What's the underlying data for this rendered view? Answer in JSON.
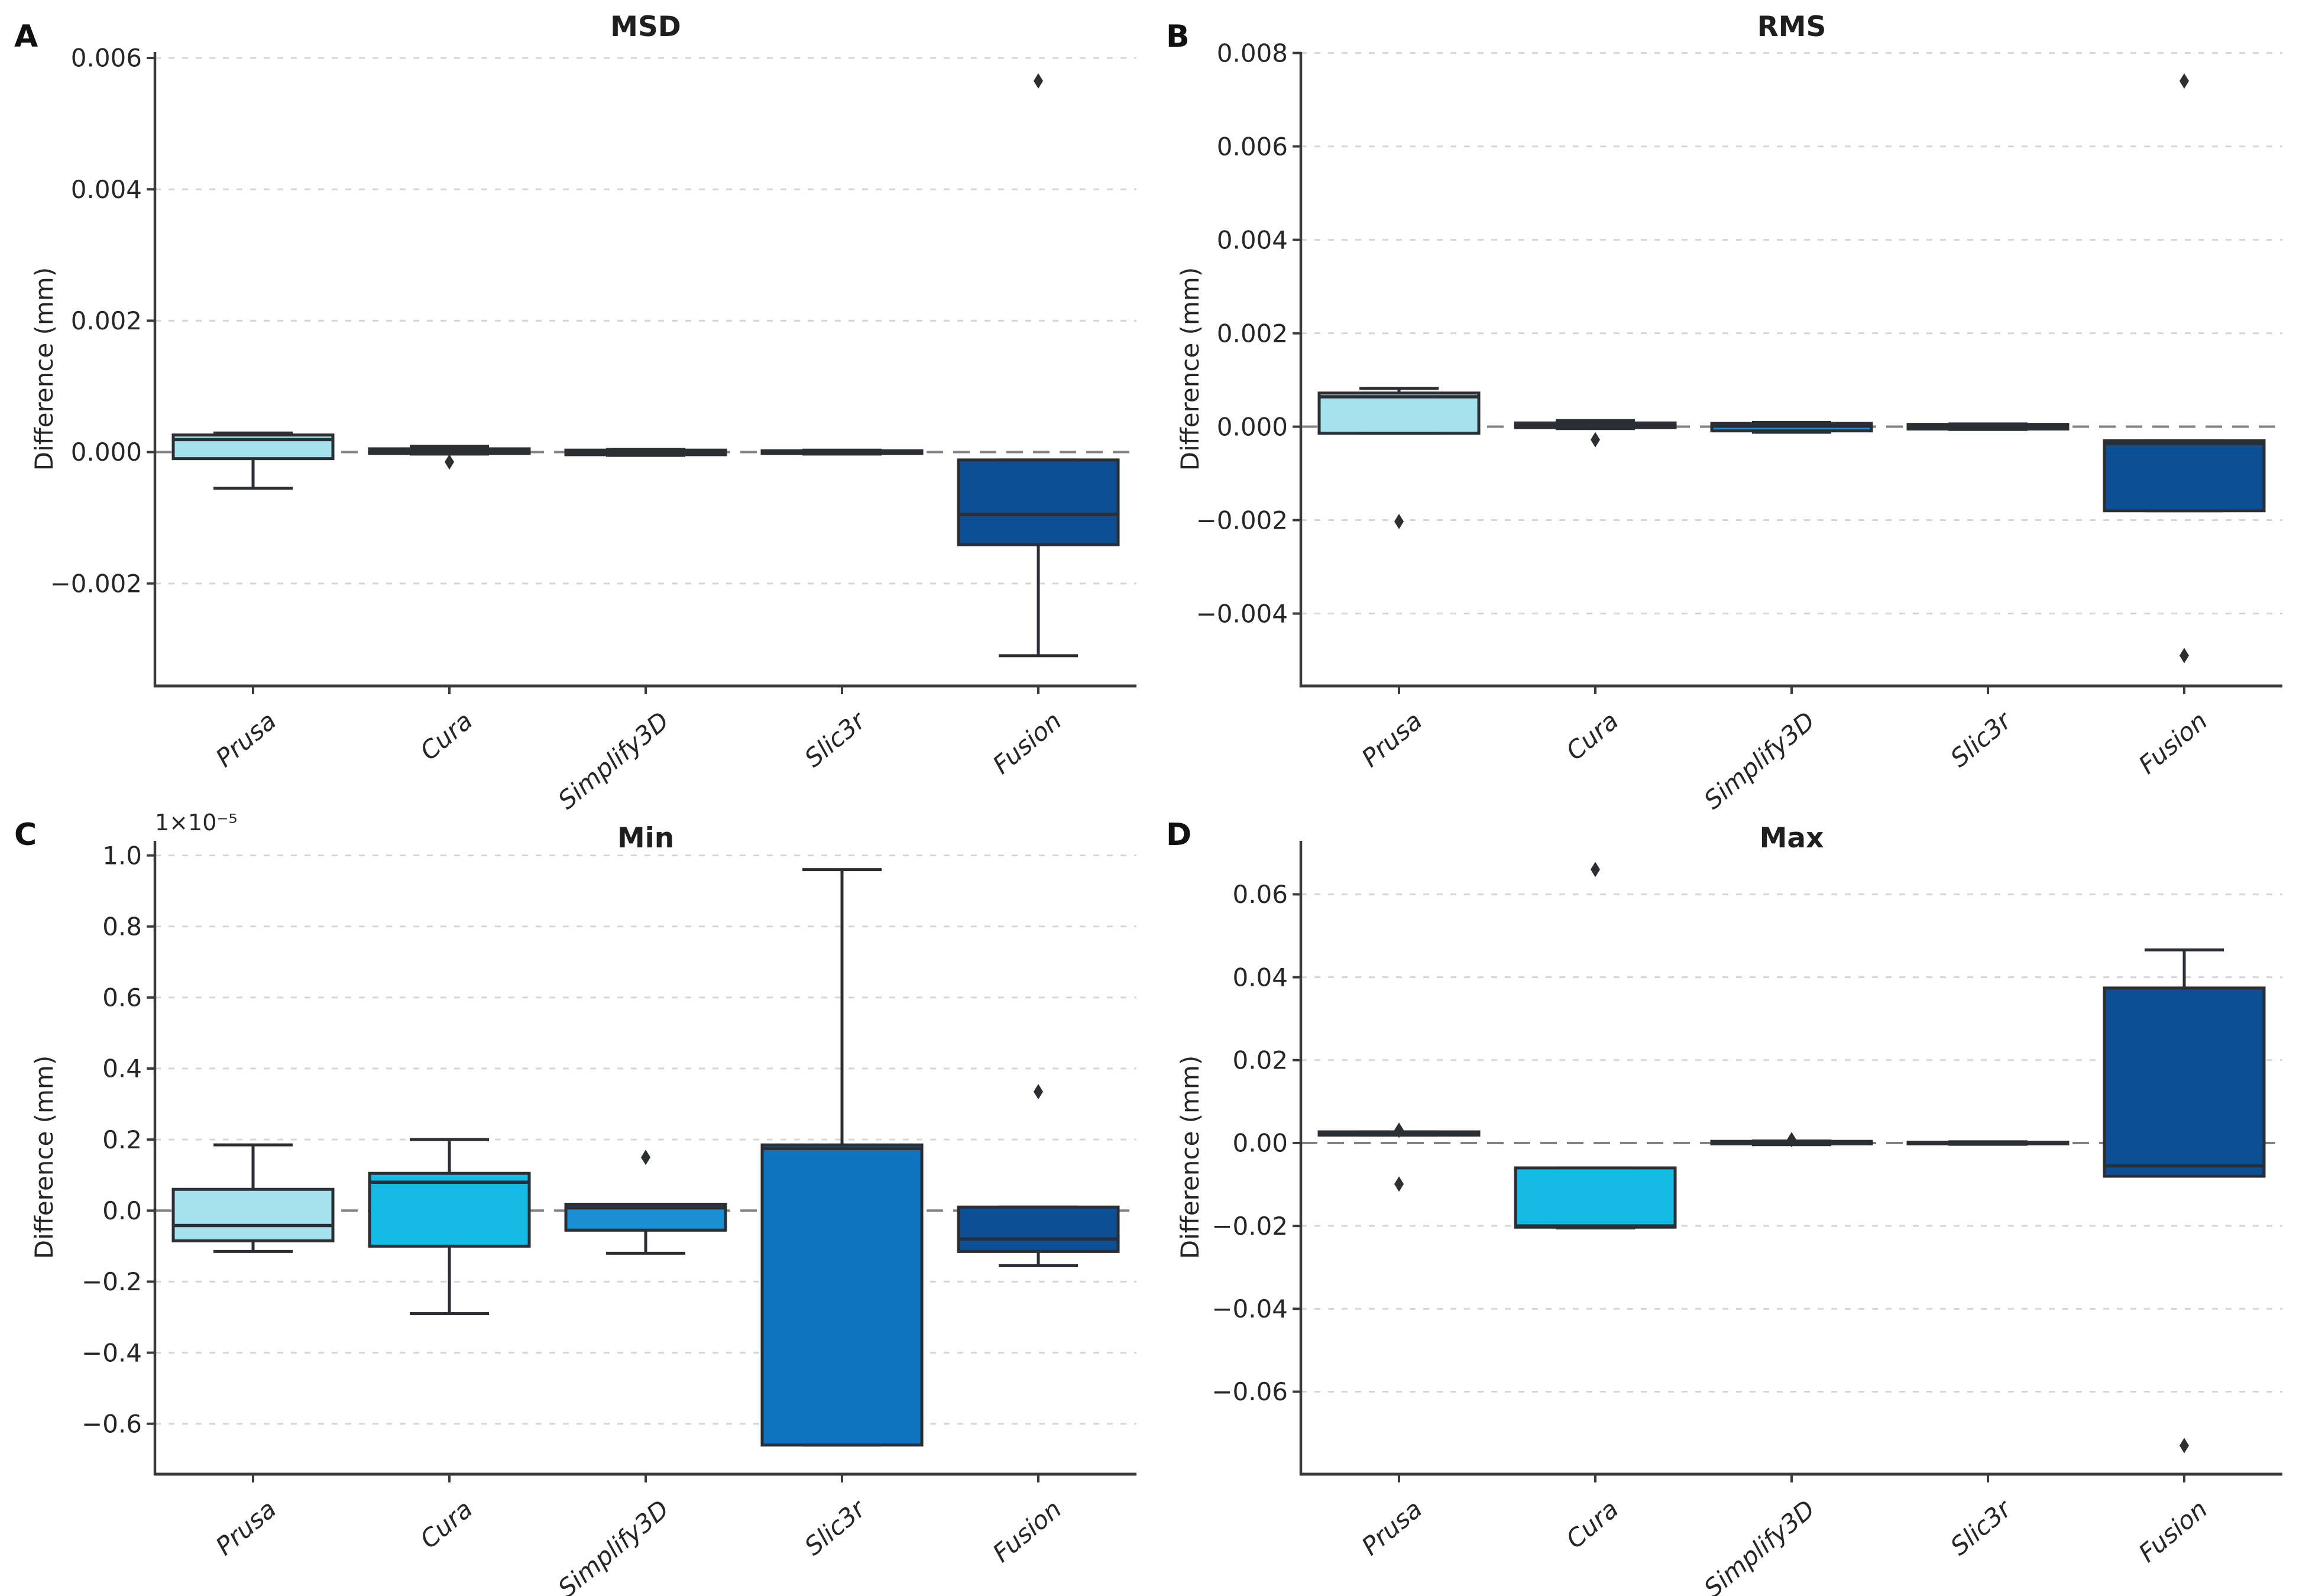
{
  "figure": {
    "background": "#ffffff",
    "text_color": "#262626",
    "axis_color": "#3b3b3b",
    "grid_color": "#d6d6d6",
    "zero_line_color": "#828282",
    "box_edge_color": "#2b2e33",
    "ylabel": "Difference (mm)",
    "categories": [
      "Prusa",
      "Cura",
      "Simplify3D",
      "Slic3r",
      "Fusion"
    ],
    "palette": {
      "Prusa": "#a6e1ee",
      "Cura": "#14b9e4",
      "Simplify3D": "#1b8fd4",
      "Slic3r": "#0e74c2",
      "Fusion": "#0d4f94"
    }
  },
  "chart_data": [
    {
      "type": "box",
      "panel": "A",
      "letter": "A",
      "title": "MSD",
      "ylabel": "Difference (mm)",
      "units": "mm",
      "categories": [
        "Prusa",
        "Cura",
        "Simplify3D",
        "Slic3r",
        "Fusion"
      ],
      "ylim": [
        -0.00356,
        0.00609
      ],
      "yticks": [
        0.006,
        0.004,
        0.002,
        0,
        -0.002
      ],
      "ytick_labels": [
        "0.006",
        "0.004",
        "0.002",
        "0.000",
        "−0.002"
      ],
      "zero_line": 0,
      "grid": "horizontal-dashed",
      "offset_text": "",
      "boxes": [
        {
          "category": "Prusa",
          "whisker_low": -0.00055,
          "q1": -0.0001,
          "median": 0.00019,
          "q3": 0.00026,
          "whisker_high": 0.00029,
          "outliers": []
        },
        {
          "category": "Cura",
          "whisker_low": -3e-05,
          "q1": -2e-05,
          "median": 2e-05,
          "q3": 5e-05,
          "whisker_high": 9e-05,
          "outliers": [
            -0.00015
          ]
        },
        {
          "category": "Simplify3D",
          "whisker_low": -5e-05,
          "q1": -4e-05,
          "median": 0.0,
          "q3": 3e-05,
          "whisker_high": 4e-05,
          "outliers": []
        },
        {
          "category": "Slic3r",
          "whisker_low": -3e-05,
          "q1": -2e-05,
          "median": 0.0,
          "q3": 2e-05,
          "whisker_high": 3e-05,
          "outliers": []
        },
        {
          "category": "Fusion",
          "whisker_low": -0.0031,
          "q1": -0.00141,
          "median": -0.00095,
          "q3": -0.00012,
          "whisker_high": -0.00012,
          "outliers": [
            0.00565
          ]
        }
      ]
    },
    {
      "type": "box",
      "panel": "B",
      "letter": "B",
      "title": "RMS",
      "ylabel": "Difference (mm)",
      "units": "mm",
      "categories": [
        "Prusa",
        "Cura",
        "Simplify3D",
        "Slic3r",
        "Fusion"
      ],
      "ylim": [
        -0.00555,
        0.00802
      ],
      "yticks": [
        0.008,
        0.006,
        0.004,
        0.002,
        0,
        -0.002,
        -0.004
      ],
      "ytick_labels": [
        "0.008",
        "0.006",
        "0.004",
        "0.002",
        "0.000",
        "−0.002",
        "−0.004"
      ],
      "zero_line": 0,
      "grid": "horizontal-dashed",
      "offset_text": "",
      "boxes": [
        {
          "category": "Prusa",
          "whisker_low": -0.00014,
          "q1": -0.00014,
          "median": 0.00064,
          "q3": 0.00072,
          "whisker_high": 0.00082,
          "outliers": [
            -0.00203
          ]
        },
        {
          "category": "Cura",
          "whisker_low": -4e-05,
          "q1": -2e-05,
          "median": 4e-05,
          "q3": 8e-05,
          "whisker_high": 0.00013,
          "outliers": [
            -0.00028
          ]
        },
        {
          "category": "Simplify3D",
          "whisker_low": -0.00012,
          "q1": -9e-05,
          "median": 1e-05,
          "q3": 7e-05,
          "whisker_high": 9e-05,
          "outliers": []
        },
        {
          "category": "Slic3r",
          "whisker_low": -6e-05,
          "q1": -5e-05,
          "median": 0.0,
          "q3": 5e-05,
          "whisker_high": 6e-05,
          "outliers": []
        },
        {
          "category": "Fusion",
          "whisker_low": -0.0018,
          "q1": -0.0018,
          "median": -0.00036,
          "q3": -0.0003,
          "whisker_high": -0.0003,
          "outliers": [
            0.0074,
            -0.0049
          ]
        }
      ]
    },
    {
      "type": "box",
      "panel": "C",
      "letter": "C",
      "title": "Min",
      "ylabel": "Difference (mm)",
      "units": "1e-5 mm",
      "offset_text": "1×10⁻⁵",
      "categories": [
        "Prusa",
        "Cura",
        "Simplify3D",
        "Slic3r",
        "Fusion"
      ],
      "ylim": [
        -0.742,
        1.041
      ],
      "yticks": [
        1.0,
        0.8,
        0.6,
        0.4,
        0.2,
        0.0,
        -0.2,
        -0.4,
        -0.6
      ],
      "ytick_labels": [
        "1.0",
        "0.8",
        "0.6",
        "0.4",
        "0.2",
        "0.0",
        "−0.2",
        "−0.4",
        "−0.6"
      ],
      "zero_line": 0,
      "grid": "horizontal-dashed",
      "boxes": [
        {
          "category": "Prusa",
          "whisker_low": -0.115,
          "q1": -0.085,
          "median": -0.042,
          "q3": 0.06,
          "whisker_high": 0.185,
          "outliers": []
        },
        {
          "category": "Cura",
          "whisker_low": -0.29,
          "q1": -0.1,
          "median": 0.08,
          "q3": 0.105,
          "whisker_high": 0.2,
          "outliers": []
        },
        {
          "category": "Simplify3D",
          "whisker_low": -0.12,
          "q1": -0.055,
          "median": 0.008,
          "q3": 0.018,
          "whisker_high": 0.018,
          "outliers": [
            0.15
          ]
        },
        {
          "category": "Slic3r",
          "whisker_low": -0.66,
          "q1": -0.66,
          "median": 0.175,
          "q3": 0.185,
          "whisker_high": 0.96,
          "outliers": []
        },
        {
          "category": "Fusion",
          "whisker_low": -0.155,
          "q1": -0.115,
          "median": -0.08,
          "q3": 0.01,
          "whisker_high": 0.01,
          "outliers": [
            0.335
          ]
        }
      ]
    },
    {
      "type": "box",
      "panel": "D",
      "letter": "D",
      "title": "Max",
      "ylabel": "Difference (mm)",
      "units": "mm",
      "categories": [
        "Prusa",
        "Cura",
        "Simplify3D",
        "Slic3r",
        "Fusion"
      ],
      "ylim": [
        -0.0799,
        0.0729
      ],
      "yticks": [
        0.06,
        0.04,
        0.02,
        0.0,
        -0.02,
        -0.04,
        -0.06
      ],
      "ytick_labels": [
        "0.06",
        "0.04",
        "0.02",
        "0.00",
        "−0.02",
        "−0.04",
        "−0.06"
      ],
      "zero_line": 0,
      "grid": "horizontal-dashed",
      "offset_text": "",
      "boxes": [
        {
          "category": "Prusa",
          "whisker_low": 0.0019,
          "q1": 0.0019,
          "median": 0.0023,
          "q3": 0.0027,
          "whisker_high": 0.0027,
          "outliers": [
            0.0031,
            -0.0099
          ]
        },
        {
          "category": "Cura",
          "whisker_low": -0.0205,
          "q1": -0.0203,
          "median": -0.02,
          "q3": -0.006,
          "whisker_high": -0.006,
          "outliers": [
            0.066
          ]
        },
        {
          "category": "Simplify3D",
          "whisker_low": -0.0004,
          "q1": -0.0002,
          "median": 0.0001,
          "q3": 0.0004,
          "whisker_high": 0.0005,
          "outliers": [
            0.0008
          ]
        },
        {
          "category": "Slic3r",
          "whisker_low": -0.0003,
          "q1": -0.0002,
          "median": 0.0,
          "q3": 0.0002,
          "whisker_high": 0.0003,
          "outliers": []
        },
        {
          "category": "Fusion",
          "whisker_low": -0.008,
          "q1": -0.008,
          "median": -0.0055,
          "q3": 0.0374,
          "whisker_high": 0.0466,
          "outliers": [
            -0.073
          ]
        }
      ]
    }
  ]
}
